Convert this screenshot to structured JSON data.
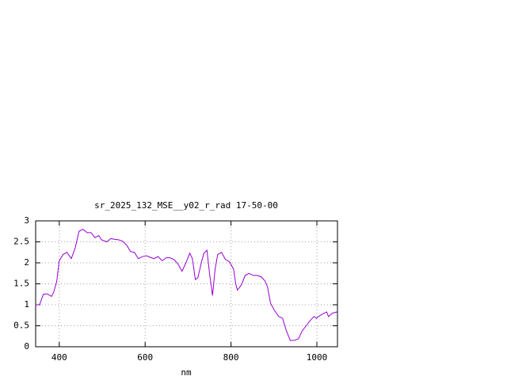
{
  "chart_data": {
    "type": "line",
    "title": "sr_2025_132_MSE__y02_r_rad 17-50-00",
    "x_label": "nm",
    "x": [
      345,
      354,
      363,
      372,
      382,
      387,
      394,
      400,
      409,
      418,
      428,
      437,
      446,
      455,
      465,
      474,
      483,
      492,
      498,
      511,
      520,
      529,
      538,
      547,
      557,
      566,
      575,
      584,
      594,
      603,
      612,
      621,
      630,
      640,
      649,
      658,
      667,
      676,
      686,
      695,
      704,
      710,
      717,
      723,
      732,
      737,
      744,
      750,
      757,
      763,
      769,
      778,
      787,
      796,
      806,
      811,
      815,
      824,
      833,
      842,
      852,
      861,
      870,
      879,
      885,
      892,
      901,
      911,
      920,
      929,
      938,
      947,
      957,
      966,
      975,
      984,
      993,
      999,
      1008,
      1017,
      1023,
      1027,
      1036,
      1047
    ],
    "series": [
      {
        "color": "#9400d3",
        "values": [
          1.0,
          1.0,
          1.25,
          1.26,
          1.2,
          1.3,
          1.55,
          2.05,
          2.2,
          2.25,
          2.1,
          2.35,
          2.75,
          2.8,
          2.72,
          2.72,
          2.6,
          2.65,
          2.55,
          2.5,
          2.58,
          2.56,
          2.55,
          2.52,
          2.42,
          2.27,
          2.25,
          2.1,
          2.15,
          2.17,
          2.13,
          2.1,
          2.15,
          2.05,
          2.12,
          2.12,
          2.08,
          1.98,
          1.8,
          2.0,
          2.23,
          2.1,
          1.6,
          1.65,
          2.05,
          2.23,
          2.3,
          1.75,
          1.22,
          1.85,
          2.2,
          2.25,
          2.08,
          2.03,
          1.85,
          1.5,
          1.35,
          1.47,
          1.7,
          1.75,
          1.7,
          1.7,
          1.67,
          1.57,
          1.43,
          1.04,
          0.87,
          0.72,
          0.68,
          0.38,
          0.15,
          0.15,
          0.19,
          0.38,
          0.5,
          0.62,
          0.72,
          0.68,
          0.75,
          0.8,
          0.83,
          0.72,
          0.8,
          0.83
        ]
      }
    ],
    "xlim": [
      345,
      1048
    ],
    "ylim": [
      0,
      3
    ],
    "xticks": [
      400,
      600,
      800,
      1000
    ],
    "yticks": [
      0,
      0.5,
      1,
      1.5,
      2,
      2.5,
      3
    ],
    "grid": true
  }
}
